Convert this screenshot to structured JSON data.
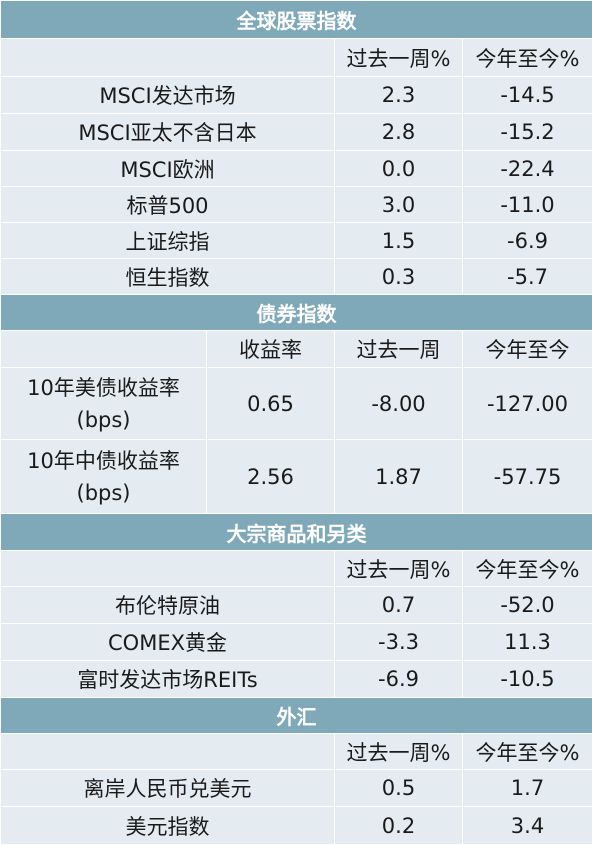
{
  "sections": {
    "equity": {
      "title": "全球股票指数",
      "headers": [
        "过去一周%",
        "今年至今%"
      ],
      "rows": [
        {
          "name": "MSCI发达市场",
          "week": "2.3",
          "ytd": "-14.5"
        },
        {
          "name": "MSCI亚太不含日本",
          "week": "2.8",
          "ytd": "-15.2"
        },
        {
          "name": "MSCI欧洲",
          "week": "0.0",
          "ytd": "-22.4"
        },
        {
          "name": "标普500",
          "week": "3.0",
          "ytd": "-11.0"
        },
        {
          "name": "上证综指",
          "week": "1.5",
          "ytd": "-6.9"
        },
        {
          "name": "恒生指数",
          "week": "0.3",
          "ytd": "-5.7"
        }
      ]
    },
    "bond": {
      "title": "债券指数",
      "headers": [
        "收益率",
        "过去一周",
        "今年至今"
      ],
      "rows": [
        {
          "name_line1": "10年美债收益率",
          "name_line2": "(bps)",
          "yield": "0.65",
          "week": "-8.00",
          "ytd": "-127.00"
        },
        {
          "name_line1": "10年中债收益率",
          "name_line2": "(bps)",
          "yield": "2.56",
          "week": "1.87",
          "ytd": "-57.75"
        }
      ]
    },
    "commodity": {
      "title": "大宗商品和另类",
      "headers": [
        "过去一周%",
        "今年至今%"
      ],
      "rows": [
        {
          "name": "布伦特原油",
          "week": "0.7",
          "ytd": "-52.0"
        },
        {
          "name": "COMEX黄金",
          "week": "-3.3",
          "ytd": "11.3"
        },
        {
          "name": "富时发达市场REITs",
          "week": "-6.9",
          "ytd": "-10.5"
        }
      ]
    },
    "fx": {
      "title": "外汇",
      "headers": [
        "过去一周%",
        "今年至今%"
      ],
      "rows": [
        {
          "name": "离岸人民币兑美元",
          "week": "0.5",
          "ytd": "1.7"
        },
        {
          "name": "美元指数",
          "week": "0.2",
          "ytd": "3.4"
        }
      ]
    }
  }
}
